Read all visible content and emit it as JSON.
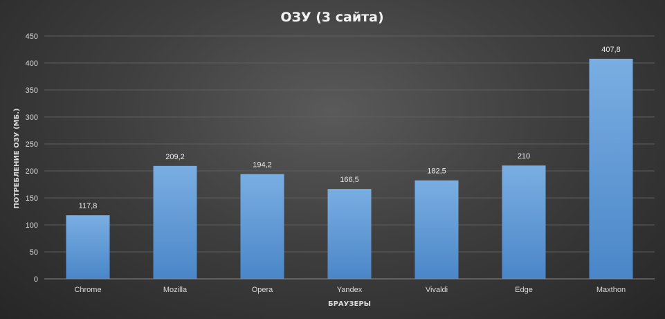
{
  "chart_data": {
    "type": "bar",
    "title": "ОЗУ (3 сайта)",
    "xlabel": "БРАУЗЕРЫ",
    "ylabel": "ПОТРЕБЛЕНИЕ ОЗУ (МБ.)",
    "categories": [
      "Chrome",
      "Mozilla",
      "Opera",
      "Yandex",
      "Vivaldi",
      "Edge",
      "Maxthon"
    ],
    "values": [
      117.8,
      209.2,
      194.2,
      166.5,
      182.5,
      210,
      407.8
    ],
    "value_labels": [
      "117,8",
      "209,2",
      "194,2",
      "166,5",
      "182,5",
      "210",
      "407,8"
    ],
    "yticks": [
      0,
      50,
      100,
      150,
      200,
      250,
      300,
      350,
      400,
      450
    ],
    "ylim": [
      0,
      450
    ],
    "grid": true,
    "legend": "none",
    "bar_color": "#5b9bd5"
  }
}
